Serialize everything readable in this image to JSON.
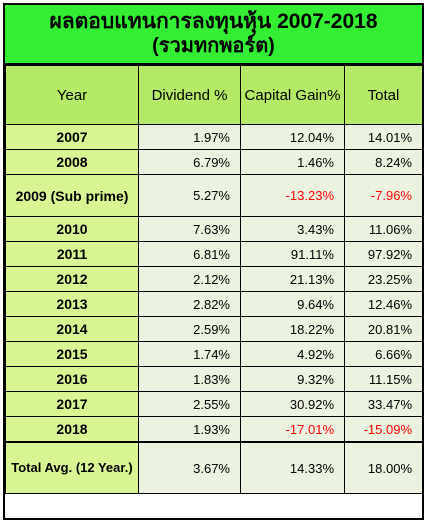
{
  "title": {
    "line1": "ผลตอบแทนการลงทุนหุ้น  2007-2018",
    "line2": "(รวมทกพอร์ต)"
  },
  "headers": {
    "year": "Year",
    "dividend": "Dividend %",
    "capital_gain": "Capital Gain%",
    "total": "Total"
  },
  "rows": [
    {
      "year": "2007",
      "dividend": "1.97%",
      "capital_gain": "12.04%",
      "total": "14.01%"
    },
    {
      "year": "2008",
      "dividend": "6.79%",
      "capital_gain": "1.46%",
      "total": "8.24%"
    },
    {
      "year": "2009 (Sub prime)",
      "dividend": "5.27%",
      "capital_gain": "-13.23%",
      "total": "-7.96%"
    },
    {
      "year": "2010",
      "dividend": "7.63%",
      "capital_gain": "3.43%",
      "total": "11.06%"
    },
    {
      "year": "2011",
      "dividend": "6.81%",
      "capital_gain": "91.11%",
      "total": "97.92%"
    },
    {
      "year": "2012",
      "dividend": "2.12%",
      "capital_gain": "21.13%",
      "total": "23.25%"
    },
    {
      "year": "2013",
      "dividend": "2.82%",
      "capital_gain": "9.64%",
      "total": "12.46%"
    },
    {
      "year": "2014",
      "dividend": "2.59%",
      "capital_gain": "18.22%",
      "total": "20.81%"
    },
    {
      "year": "2015",
      "dividend": "1.74%",
      "capital_gain": "4.92%",
      "total": "6.66%"
    },
    {
      "year": "2016",
      "dividend": "1.83%",
      "capital_gain": "9.32%",
      "total": "11.15%"
    },
    {
      "year": "2017",
      "dividend": "2.55%",
      "capital_gain": "30.92%",
      "total": "33.47%"
    },
    {
      "year": "2018",
      "dividend": "1.93%",
      "capital_gain": "-17.01%",
      "total": "-15.09%"
    }
  ],
  "summary": {
    "year": "Total Avg. (12 Year.)",
    "dividend": "3.67%",
    "capital_gain": "14.33%",
    "total": "18.00%"
  },
  "colors": {
    "title_bg": "#33ee33",
    "header_bg": "#b4ea66",
    "year_col_bg": "#d9f593",
    "value_bg": "#ebf2e0",
    "negative": "#ff0000"
  }
}
